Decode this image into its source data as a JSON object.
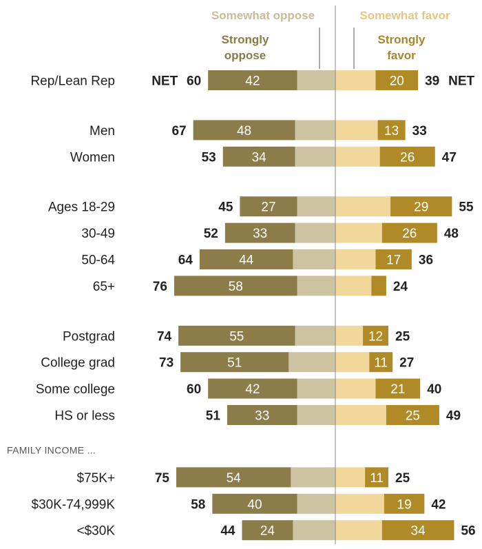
{
  "chart_data": {
    "type": "bar",
    "legend": {
      "somewhat_oppose": "Somewhat oppose",
      "strongly_oppose_line1": "Strongly",
      "strongly_oppose_line2": "oppose",
      "somewhat_favor": "Somewhat favor",
      "strongly_favor_line1": "Strongly",
      "strongly_favor_line2": "favor"
    },
    "net_label": "NET",
    "sections": [
      {
        "header": "",
        "rows": [
          {
            "label": "Rep/Lean Rep",
            "strongly_oppose": 42,
            "oppose_net": 60,
            "strongly_favor": 20,
            "favor_net": 39,
            "show_net_label": true
          }
        ]
      },
      {
        "header": "",
        "rows": [
          {
            "label": "Men",
            "strongly_oppose": 48,
            "oppose_net": 67,
            "strongly_favor": 13,
            "favor_net": 33
          },
          {
            "label": "Women",
            "strongly_oppose": 34,
            "oppose_net": 53,
            "strongly_favor": 26,
            "favor_net": 47
          }
        ]
      },
      {
        "header": "",
        "rows": [
          {
            "label": "Ages 18-29",
            "strongly_oppose": 27,
            "oppose_net": 45,
            "strongly_favor": 29,
            "favor_net": 55
          },
          {
            "label": "30-49",
            "strongly_oppose": 33,
            "oppose_net": 52,
            "strongly_favor": 26,
            "favor_net": 48
          },
          {
            "label": "50-64",
            "strongly_oppose": 44,
            "oppose_net": 64,
            "strongly_favor": 17,
            "favor_net": 36
          },
          {
            "label": "65+",
            "strongly_oppose": 58,
            "oppose_net": 76,
            "strongly_favor": 7,
            "favor_net": 24,
            "hide_favor_label": true
          }
        ]
      },
      {
        "header": "",
        "rows": [
          {
            "label": "Postgrad",
            "strongly_oppose": 55,
            "oppose_net": 74,
            "strongly_favor": 12,
            "favor_net": 25
          },
          {
            "label": "College grad",
            "strongly_oppose": 51,
            "oppose_net": 73,
            "strongly_favor": 11,
            "favor_net": 27
          },
          {
            "label": "Some college",
            "strongly_oppose": 42,
            "oppose_net": 60,
            "strongly_favor": 21,
            "favor_net": 40
          },
          {
            "label": "HS or less",
            "strongly_oppose": 33,
            "oppose_net": 51,
            "strongly_favor": 25,
            "favor_net": 49
          }
        ]
      },
      {
        "header": "FAMILY INCOME ...",
        "rows": [
          {
            "label": "$75K+",
            "strongly_oppose": 54,
            "oppose_net": 75,
            "strongly_favor": 11,
            "favor_net": 25
          },
          {
            "label": "$30K-74,999K",
            "strongly_oppose": 40,
            "oppose_net": 58,
            "strongly_favor": 19,
            "favor_net": 42
          },
          {
            "label": "<$30K",
            "strongly_oppose": 24,
            "oppose_net": 44,
            "strongly_favor": 34,
            "favor_net": 56
          }
        ]
      }
    ],
    "colors": {
      "strongly_oppose": "#8b7c4a",
      "somewhat_oppose": "#cdc2a2",
      "somewhat_favor": "#f1d89a",
      "strongly_favor": "#b08a26",
      "somewhat_oppose_text": "#c8bc98",
      "somewhat_favor_text": "#e5c77d",
      "strongly_text": "#8a7b45",
      "strongly_favor_text": "#a88527",
      "center_line": "#888888"
    }
  }
}
